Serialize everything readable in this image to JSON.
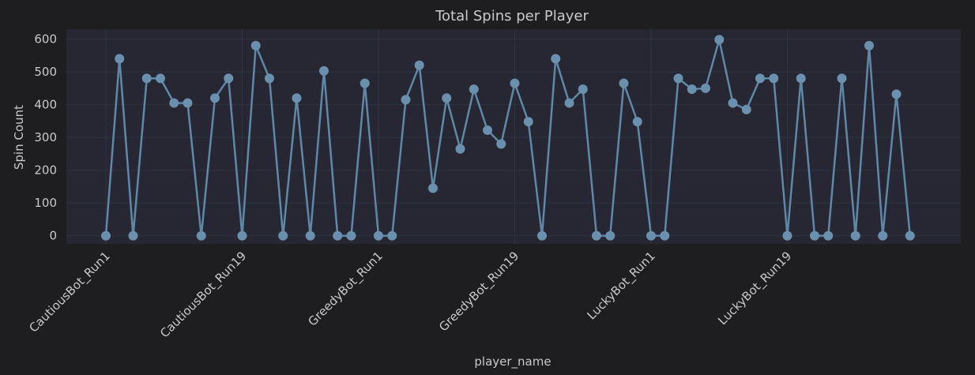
{
  "chart_data": {
    "type": "line",
    "title": "Total Spins per Player",
    "xlabel": "player_name",
    "ylabel": "Spin Count",
    "ylim": [
      -25,
      630
    ],
    "yticks": [
      0,
      100,
      200,
      300,
      400,
      500,
      600
    ],
    "xtick_labels": [
      {
        "index": 0,
        "label": "CautiousBot_Run1"
      },
      {
        "index": 10,
        "label": "CautiousBot_Run19"
      },
      {
        "index": 20,
        "label": "GreedyBot_Run1"
      },
      {
        "index": 30,
        "label": "GreedyBot_Run19"
      },
      {
        "index": 40,
        "label": "LuckyBot_Run1"
      },
      {
        "index": 50,
        "label": "LuckyBot_Run19"
      }
    ],
    "grid": true,
    "colors": {
      "background": "#1e1e21",
      "plot_area": "#262733",
      "line": "#5f88a8"
    },
    "series": [
      {
        "values": [
          0,
          540,
          0,
          480,
          480,
          405,
          405,
          0,
          420,
          480,
          0,
          580,
          480,
          0,
          420,
          0,
          503,
          0,
          0,
          465,
          0,
          0,
          415,
          520,
          145,
          420,
          265,
          447,
          322,
          280,
          465,
          348,
          0,
          540,
          405,
          447,
          0,
          0,
          465,
          348,
          0,
          0,
          480,
          447,
          450,
          598,
          405,
          385,
          480,
          480,
          0,
          480,
          0,
          0,
          480,
          0,
          580,
          0,
          432,
          0
        ]
      }
    ]
  }
}
